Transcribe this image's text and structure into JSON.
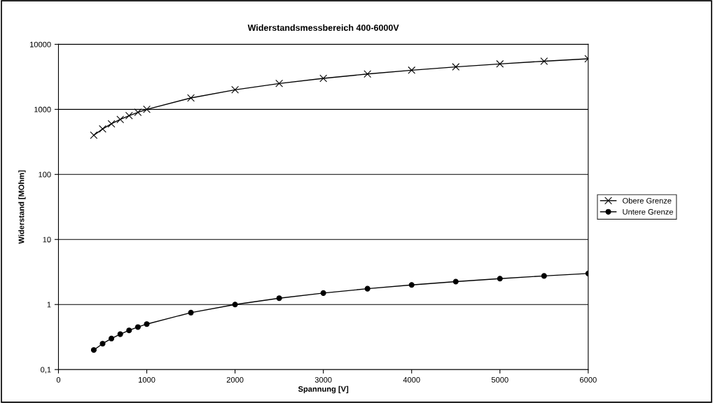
{
  "chart_data": {
    "type": "line",
    "title": "Widerstandsmessbereich 400-6000V",
    "xlabel": "Spannung [V]",
    "ylabel": "Widerstand [MOhm]",
    "x": [
      400,
      500,
      600,
      700,
      800,
      900,
      1000,
      1500,
      2000,
      2500,
      3000,
      3500,
      4000,
      4500,
      5000,
      5500,
      6000
    ],
    "series": [
      {
        "name": "Obere Grenze",
        "color": "#000000",
        "marker": "cross",
        "values": [
          400,
          500,
          600,
          700,
          800,
          900,
          1000,
          1500,
          2000,
          2500,
          3000,
          3500,
          4000,
          4500,
          5000,
          5500,
          6000
        ]
      },
      {
        "name": "Untere Grenze",
        "color": "#000000",
        "marker": "circle",
        "values": [
          0.2,
          0.25,
          0.3,
          0.35,
          0.4,
          0.45,
          0.5,
          0.75,
          1,
          1.25,
          1.5,
          1.75,
          2,
          2.25,
          2.5,
          2.75,
          3
        ]
      }
    ],
    "log": "y",
    "xlim": [
      0,
      6000
    ],
    "xticks": [
      0,
      1000,
      2000,
      3000,
      4000,
      5000,
      6000
    ],
    "ylim": [
      0.1,
      10000
    ],
    "yticks": [
      {
        "value": 0.1,
        "label": "0,1"
      },
      1,
      10,
      100,
      1000,
      10000
    ],
    "grid": "y",
    "legend": "right",
    "line_style": "solid"
  }
}
